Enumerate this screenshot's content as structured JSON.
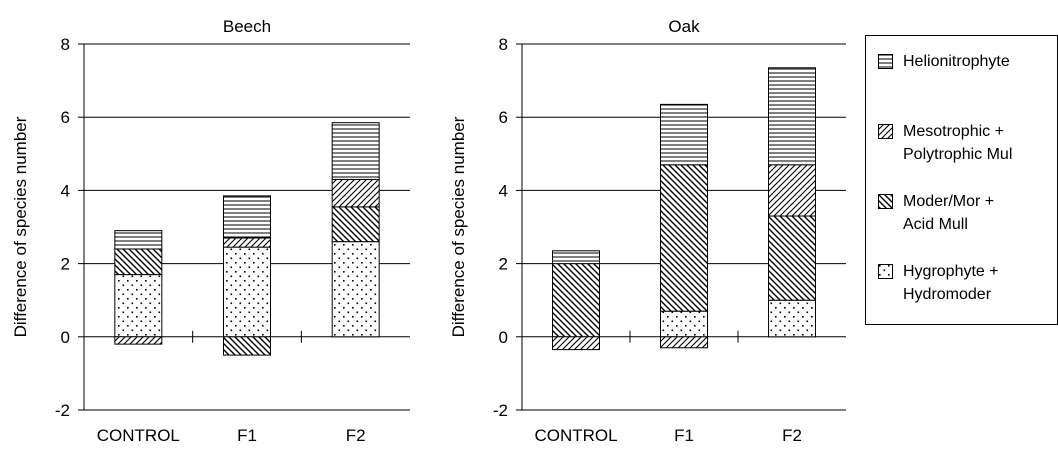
{
  "chart_data": [
    {
      "type": "bar",
      "stacked": true,
      "title": "Beech",
      "ylabel": "Difference of species number",
      "xlabel": "",
      "ylim": [
        -2,
        8
      ],
      "yticks": [
        -2,
        0,
        2,
        4,
        6,
        8
      ],
      "grid": true,
      "categories": [
        "CONTROL",
        "F1",
        "F2"
      ],
      "series": [
        {
          "name": "Hygrophyte + Hydromoder",
          "values": [
            1.7,
            2.45,
            2.6
          ]
        },
        {
          "name": "Moder/Mor + Acid Mull",
          "values": [
            0.7,
            -0.5,
            0.95
          ]
        },
        {
          "name": "Mesotrophic + Polytrophic Mul",
          "values": [
            -0.2,
            0.25,
            0.75
          ]
        },
        {
          "name": "Helionitrophyte",
          "values": [
            0.5,
            1.15,
            1.55
          ]
        }
      ]
    },
    {
      "type": "bar",
      "stacked": true,
      "title": "Oak",
      "ylabel": "Difference of species number",
      "xlabel": "",
      "ylim": [
        -2,
        8
      ],
      "yticks": [
        -2,
        0,
        2,
        4,
        6,
        8
      ],
      "grid": true,
      "categories": [
        "CONTROL",
        "F1",
        "F2"
      ],
      "series": [
        {
          "name": "Hygrophyte + Hydromoder",
          "values": [
            0,
            0.7,
            1.0
          ]
        },
        {
          "name": "Moder/Mor + Acid Mull",
          "values": [
            2.0,
            4.0,
            2.3
          ]
        },
        {
          "name": "Mesotrophic + Polytrophic Mul",
          "values": [
            -0.35,
            -0.3,
            1.4
          ]
        },
        {
          "name": "Helionitrophyte",
          "values": [
            0.35,
            1.65,
            2.65
          ]
        }
      ]
    }
  ],
  "legend": {
    "placement": "right",
    "items": [
      {
        "key": "helio",
        "label": "Helionitrophyte",
        "pattern": "horizontal-lines"
      },
      {
        "key": "meso",
        "label": "Mesotrophic +\nPolytrophic Mul",
        "pattern": "forward-diagonal"
      },
      {
        "key": "moder",
        "label": "Moder/Mor +\nAcid Mull",
        "pattern": "back-diagonal"
      },
      {
        "key": "hygro",
        "label": "Hygrophyte +\nHydromoder",
        "pattern": "dots"
      }
    ]
  },
  "colors": {
    "ink": "#000000",
    "background": "#ffffff"
  }
}
